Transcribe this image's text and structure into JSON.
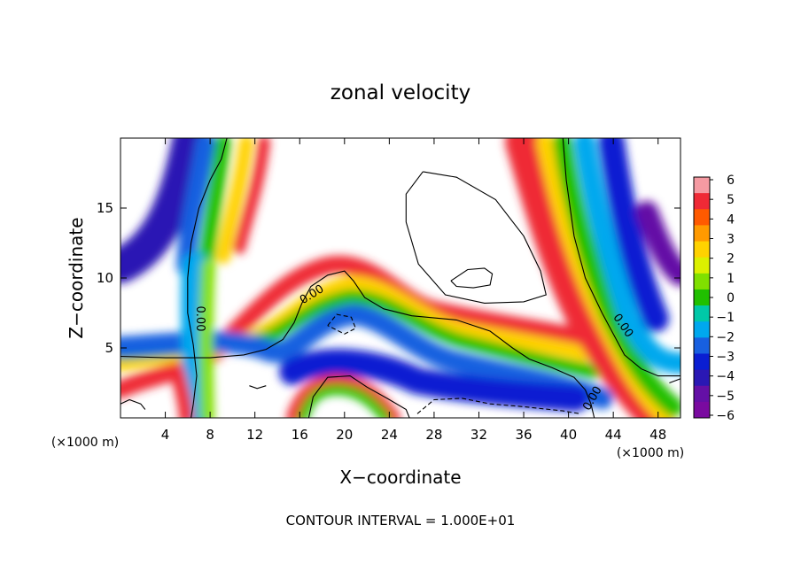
{
  "chart_data": {
    "type": "heatmap",
    "title": "zonal velocity",
    "xlabel": "X−coordinate",
    "ylabel": "Z−coordinate",
    "x_unit_left": "(×1000 m)",
    "x_unit_right": "(×1000 m)",
    "footer": "CONTOUR INTERVAL = 1.000E+01",
    "xlim": [
      0,
      50
    ],
    "ylim": [
      0,
      20
    ],
    "x_ticks": [
      {
        "value": 4,
        "label": "4"
      },
      {
        "value": 8,
        "label": "8"
      },
      {
        "value": 12,
        "label": "12"
      },
      {
        "value": 16,
        "label": "16"
      },
      {
        "value": 20,
        "label": "20"
      },
      {
        "value": 24,
        "label": "24"
      },
      {
        "value": 28,
        "label": "28"
      },
      {
        "value": 32,
        "label": "32"
      },
      {
        "value": 36,
        "label": "36"
      },
      {
        "value": 40,
        "label": "40"
      },
      {
        "value": 44,
        "label": "44"
      },
      {
        "value": 48,
        "label": "48"
      }
    ],
    "y_ticks": [
      {
        "value": 5,
        "label": "5"
      },
      {
        "value": 10,
        "label": "10"
      },
      {
        "value": 15,
        "label": "15"
      }
    ],
    "colorbar": {
      "labels": [
        "6",
        "5",
        "4",
        "3",
        "2",
        "1",
        "0",
        "−1",
        "−2",
        "−3",
        "−4",
        "−5",
        "−6"
      ],
      "colors": [
        "#f59aa2",
        "#ef2a36",
        "#ff5a00",
        "#ff9a00",
        "#ffd200",
        "#dcf000",
        "#80e000",
        "#20c000",
        "#00c8a8",
        "#00a8ee",
        "#1860e0",
        "#0a1ed2",
        "#2a18b4",
        "#6410a6",
        "#7a0aa0"
      ]
    },
    "contour_labels": [
      "0.00",
      "0.00",
      "0.00",
      "0.00"
    ],
    "contour_lines": [
      {
        "style": "solid",
        "points": [
          [
            9.5,
            20
          ],
          [
            9,
            18.5
          ],
          [
            8,
            17
          ],
          [
            7,
            15
          ],
          [
            6.3,
            12.5
          ],
          [
            6,
            10
          ],
          [
            6,
            7.5
          ],
          [
            6.5,
            5.2
          ],
          [
            6.8,
            3
          ],
          [
            6.5,
            1
          ],
          [
            6.3,
            0
          ]
        ]
      },
      {
        "style": "solid",
        "points": [
          [
            0,
            4.4
          ],
          [
            4,
            4.3
          ],
          [
            8,
            4.3
          ],
          [
            11,
            4.5
          ],
          [
            13,
            4.9
          ],
          [
            14.5,
            5.6
          ],
          [
            15.5,
            6.8
          ],
          [
            16.2,
            8.2
          ],
          [
            17,
            9.4
          ],
          [
            18.5,
            10.2
          ],
          [
            20,
            10.5
          ],
          [
            20.8,
            9.8
          ],
          [
            21.8,
            8.6
          ],
          [
            23.5,
            7.8
          ],
          [
            26,
            7.3
          ],
          [
            30,
            7.0
          ],
          [
            33,
            6.2
          ],
          [
            35,
            5.0
          ],
          [
            36.5,
            4.2
          ],
          [
            38.5,
            3.6
          ],
          [
            40.5,
            2.9
          ],
          [
            41.5,
            2
          ],
          [
            42,
            1
          ],
          [
            42.3,
            0
          ]
        ]
      },
      {
        "style": "solid",
        "points": [
          [
            39.5,
            20
          ],
          [
            39.8,
            17
          ],
          [
            40.5,
            13
          ],
          [
            41.5,
            10
          ],
          [
            43,
            7.5
          ],
          [
            44,
            6
          ],
          [
            45,
            4.5
          ],
          [
            46.5,
            3.5
          ],
          [
            48,
            3
          ],
          [
            50,
            3
          ]
        ]
      },
      {
        "style": "solid",
        "points": [
          [
            16.8,
            0
          ],
          [
            17.2,
            1.5
          ],
          [
            18.5,
            2.9
          ],
          [
            20.5,
            3.0
          ],
          [
            22,
            2.2
          ],
          [
            23.8,
            1.4
          ],
          [
            25.5,
            0.6
          ],
          [
            25.8,
            0
          ]
        ]
      },
      {
        "style": "solid",
        "points": [
          [
            27,
            17.6
          ],
          [
            30,
            17.2
          ],
          [
            33.5,
            15.6
          ],
          [
            36,
            13
          ],
          [
            37.5,
            10.5
          ],
          [
            38,
            8.8
          ],
          [
            36,
            8.3
          ],
          [
            32.5,
            8.2
          ],
          [
            29,
            8.8
          ],
          [
            26.6,
            11
          ],
          [
            25.5,
            14
          ],
          [
            25.5,
            16
          ],
          [
            27,
            17.6
          ]
        ]
      },
      {
        "style": "solid",
        "points": [
          [
            29.5,
            9.8
          ],
          [
            31,
            10.6
          ],
          [
            32.5,
            10.7
          ],
          [
            33.2,
            10.3
          ],
          [
            33,
            9.5
          ],
          [
            31.5,
            9.3
          ],
          [
            30,
            9.4
          ],
          [
            29.5,
            9.8
          ]
        ]
      },
      {
        "style": "solid",
        "points": [
          [
            11.5,
            2.3
          ],
          [
            12.2,
            2.1
          ],
          [
            13,
            2.3
          ]
        ]
      },
      {
        "style": "solid",
        "points": [
          [
            0,
            1.0
          ],
          [
            0.8,
            1.3
          ],
          [
            1.8,
            1.0
          ],
          [
            2.2,
            0.6
          ]
        ]
      },
      {
        "style": "solid",
        "points": [
          [
            49,
            2.5
          ],
          [
            50,
            2.8
          ]
        ]
      },
      {
        "style": "dashed",
        "points": [
          [
            18.5,
            6.6
          ],
          [
            19.3,
            7.4
          ],
          [
            20.6,
            7.2
          ],
          [
            21,
            6.4
          ],
          [
            20,
            6.0
          ],
          [
            18.5,
            6.6
          ]
        ]
      },
      {
        "style": "dashed",
        "points": [
          [
            26.5,
            0.3
          ],
          [
            28,
            1.3
          ],
          [
            30.5,
            1.4
          ],
          [
            33,
            1.0
          ],
          [
            36,
            0.8
          ],
          [
            39.5,
            0.5
          ],
          [
            41,
            0.3
          ]
        ]
      }
    ]
  }
}
